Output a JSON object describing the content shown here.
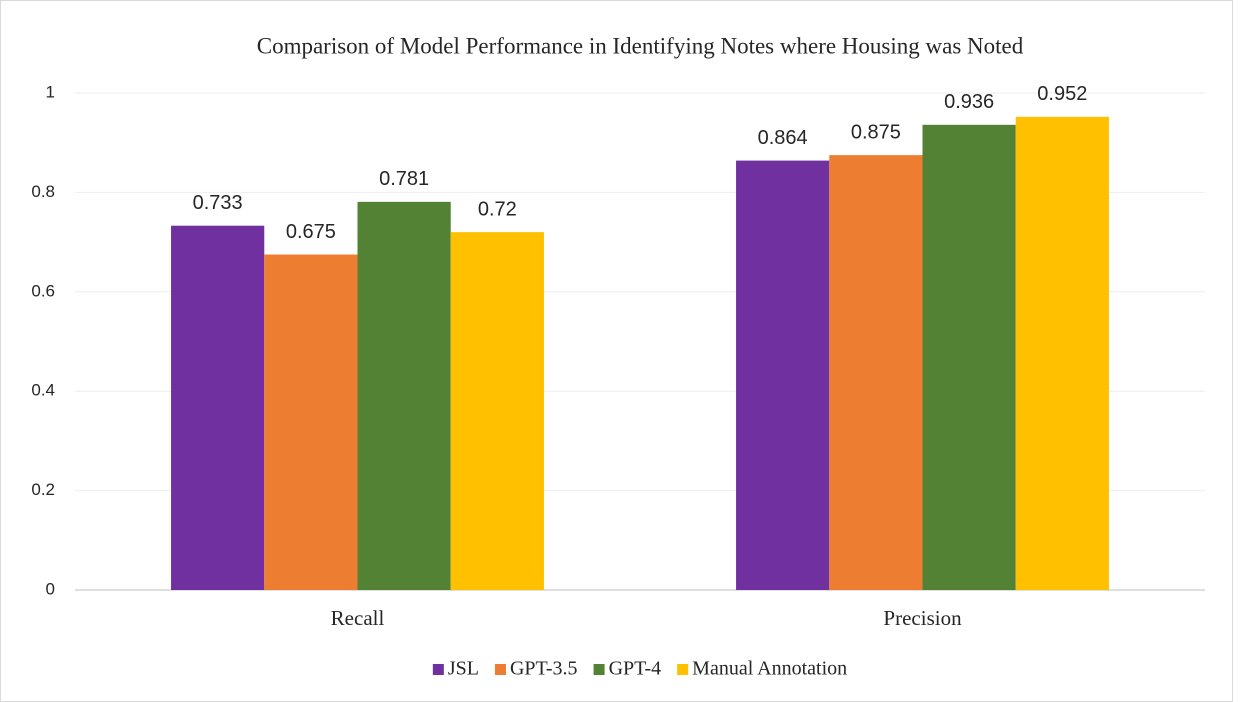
{
  "chart_data": {
    "type": "bar",
    "title": "Comparison of Model Performance in Identifying Notes where Housing was Noted",
    "categories": [
      "Recall",
      "Precision"
    ],
    "series": [
      {
        "name": "JSL",
        "color": "#7030a0",
        "values": [
          0.733,
          0.864
        ]
      },
      {
        "name": "GPT-3.5",
        "color": "#ed7d31",
        "values": [
          0.675,
          0.875
        ]
      },
      {
        "name": "GPT-4",
        "color": "#548235",
        "values": [
          0.781,
          0.936
        ]
      },
      {
        "name": "Manual Annotation",
        "color": "#ffc000",
        "values": [
          0.72,
          0.952
        ]
      }
    ],
    "ylim": [
      0,
      1
    ],
    "yticks": [
      0,
      0.2,
      0.4,
      0.6,
      0.8,
      1
    ],
    "grid": true,
    "legend": "bottom"
  }
}
